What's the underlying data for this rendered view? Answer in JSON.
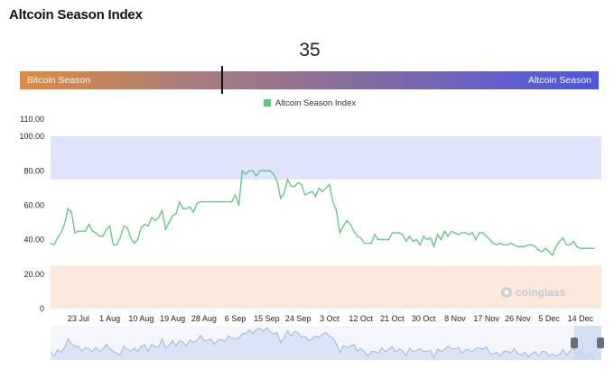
{
  "page": {
    "title": "Altcoin Season Index"
  },
  "gauge": {
    "value": "35",
    "value_num": 35,
    "left_label": "Bitcoin Season",
    "right_label": "Altcoin Season"
  },
  "watermark": "coinglass",
  "colors": {
    "line": "#5cc97a",
    "altcoin_zone": "#dfe3fb",
    "bitcoin_zone": "#fbe9dc",
    "bar_left": "#e08a3e",
    "bar_right": "#4b55e0",
    "navigator_fill": "#dbe3f7",
    "navigator_line": "#8faad8"
  },
  "chart_data": {
    "type": "line",
    "title": "",
    "xlabel": "",
    "ylabel": "",
    "ylim": [
      0,
      110
    ],
    "y_ticks": [
      "0",
      "20.00",
      "40.00",
      "60.00",
      "80.00",
      "100.00",
      "110.00"
    ],
    "y_tick_values": [
      0,
      20,
      40,
      60,
      80,
      100,
      110
    ],
    "x_ticks": [
      "23 Jul",
      "1 Aug",
      "10 Aug",
      "19 Aug",
      "28 Aug",
      "6 Sep",
      "15 Sep",
      "24 Sep",
      "3 Oct",
      "12 Oct",
      "21 Oct",
      "30 Oct",
      "8 Nov",
      "17 Nov",
      "26 Nov",
      "5 Dec",
      "14 Dec"
    ],
    "x_tick_days": [
      8,
      17,
      26,
      35,
      44,
      53,
      62,
      71,
      80,
      89,
      98,
      107,
      116,
      125,
      134,
      143,
      152
    ],
    "x_range_days": [
      0,
      158
    ],
    "zones": [
      {
        "name": "Altcoin Season",
        "from": 75,
        "to": 100
      },
      {
        "name": "Bitcoin Season",
        "from": 0,
        "to": 25
      }
    ],
    "legend": {
      "position": "top-center"
    },
    "grid": false,
    "series": [
      {
        "name": "Altcoin Season Index",
        "x": [
          0,
          1,
          2,
          3,
          4,
          5,
          6,
          7,
          8,
          9,
          10,
          11,
          12,
          13,
          14,
          15,
          16,
          17,
          18,
          19,
          20,
          21,
          22,
          23,
          24,
          25,
          26,
          27,
          28,
          29,
          30,
          31,
          32,
          33,
          34,
          35,
          36,
          37,
          38,
          39,
          40,
          41,
          42,
          43,
          44,
          45,
          46,
          47,
          48,
          49,
          50,
          51,
          52,
          53,
          54,
          55,
          56,
          57,
          58,
          59,
          60,
          61,
          62,
          63,
          64,
          65,
          66,
          67,
          68,
          69,
          70,
          71,
          72,
          73,
          74,
          75,
          76,
          77,
          78,
          79,
          80,
          81,
          82,
          83,
          84,
          85,
          86,
          87,
          88,
          89,
          90,
          91,
          92,
          93,
          94,
          95,
          96,
          97,
          98,
          99,
          100,
          101,
          102,
          103,
          104,
          105,
          106,
          107,
          108,
          109,
          110,
          111,
          112,
          113,
          114,
          115,
          116,
          117,
          118,
          119,
          120,
          121,
          122,
          123,
          124,
          125,
          126,
          127,
          128,
          129,
          130,
          131,
          132,
          133,
          134,
          135,
          136,
          137,
          138,
          139,
          140,
          141,
          142,
          143,
          144,
          145,
          146,
          147,
          148,
          149,
          150,
          151,
          152,
          153,
          154,
          155,
          156
        ],
        "values": [
          38,
          37,
          41,
          44,
          49,
          58,
          56,
          44,
          45,
          45,
          45,
          49,
          45,
          44,
          42,
          42,
          46,
          48,
          37,
          37,
          41,
          48,
          47,
          41,
          38,
          40,
          47,
          49,
          48,
          53,
          51,
          53,
          57,
          46,
          50,
          54,
          55,
          62,
          58,
          58,
          59,
          56,
          61,
          62,
          62,
          62,
          62,
          62,
          62,
          62,
          62,
          62,
          62,
          66,
          60,
          80,
          78,
          80,
          80,
          77,
          80,
          80,
          80,
          80,
          78,
          74,
          64,
          67,
          75,
          71,
          71,
          73,
          72,
          66,
          67,
          68,
          65,
          70,
          68,
          70,
          72,
          62,
          57,
          44,
          48,
          51,
          49,
          45,
          42,
          41,
          38,
          38,
          38,
          43,
          40,
          40,
          40,
          40,
          44,
          44,
          44,
          43,
          39,
          42,
          39,
          40,
          37,
          42,
          40,
          41,
          36,
          43,
          40,
          45,
          42,
          45,
          44,
          43,
          44,
          44,
          43,
          44,
          40,
          44,
          44,
          42,
          40,
          38,
          37,
          38,
          37,
          37,
          38,
          37,
          36,
          36,
          36,
          37,
          37,
          36,
          34,
          33,
          35,
          33,
          31,
          36,
          39,
          41,
          37,
          37,
          39,
          36,
          35,
          35,
          35,
          35,
          35
        ]
      }
    ]
  }
}
